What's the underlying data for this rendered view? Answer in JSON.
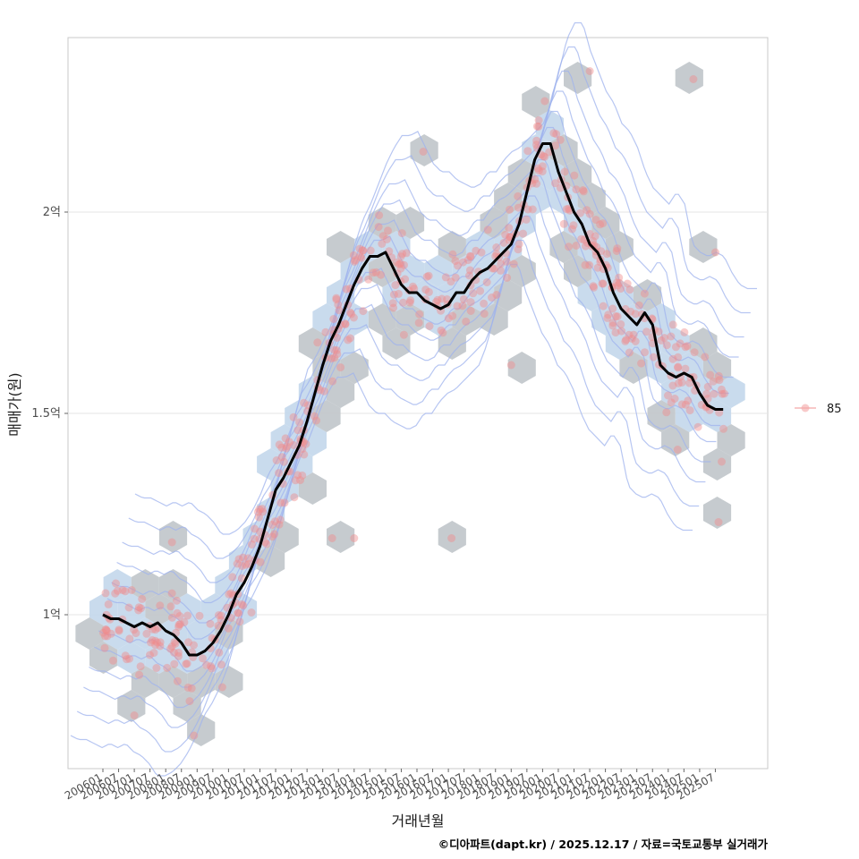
{
  "chart_data": {
    "type": "scatter",
    "title": "",
    "xlabel": "거래년월",
    "ylabel": "매매가(원)",
    "caption": "©디아파트(dapt.kr) / 2025.12.17 / 자료=국토교통부 실거래가",
    "ylim": [
      0.63,
      2.45
    ],
    "y_unit": "억",
    "y_ticks": [
      {
        "value": 1.0,
        "label": "1억"
      },
      {
        "value": 1.5,
        "label": "1.5억"
      },
      {
        "value": 2.0,
        "label": "2억"
      }
    ],
    "x_tick_labels": [
      "200601",
      "200607",
      "200701",
      "200707",
      "200801",
      "200807",
      "200901",
      "200907",
      "201001",
      "201007",
      "201101",
      "201107",
      "201201",
      "201207",
      "201301",
      "201307",
      "201401",
      "201407",
      "201501",
      "201507",
      "201601",
      "201607",
      "201701",
      "201707",
      "201801",
      "201807",
      "201901",
      "201907",
      "202001",
      "202007",
      "202101",
      "202107",
      "202201",
      "202207",
      "202301",
      "202307",
      "202401",
      "202407",
      "202501",
      "202507"
    ],
    "legend": {
      "title": "",
      "entries": [
        "85"
      ],
      "position": "right"
    },
    "layers": [
      "hexbin density",
      "2d density contours",
      "transaction points",
      "moving average line"
    ],
    "series": [
      {
        "name": "moving-average",
        "x": [
          2006.0,
          2006.25,
          2006.5,
          2006.75,
          2007.0,
          2007.25,
          2007.5,
          2007.75,
          2008.0,
          2008.25,
          2008.5,
          2008.75,
          2009.0,
          2009.25,
          2009.5,
          2009.75,
          2010.0,
          2010.25,
          2010.5,
          2010.75,
          2011.0,
          2011.25,
          2011.5,
          2011.75,
          2012.0,
          2012.25,
          2012.5,
          2012.75,
          2013.0,
          2013.25,
          2013.5,
          2013.75,
          2014.0,
          2014.25,
          2014.5,
          2014.75,
          2015.0,
          2015.25,
          2015.5,
          2015.75,
          2016.0,
          2016.25,
          2016.5,
          2016.75,
          2017.0,
          2017.25,
          2017.5,
          2017.75,
          2018.0,
          2018.25,
          2018.5,
          2018.75,
          2019.0,
          2019.25,
          2019.5,
          2019.75,
          2020.0,
          2020.25,
          2020.5,
          2020.75,
          2021.0,
          2021.25,
          2021.5,
          2021.75,
          2022.0,
          2022.25,
          2022.5,
          2022.75,
          2023.0,
          2023.25,
          2023.5,
          2023.75,
          2024.0,
          2024.25,
          2024.5,
          2024.75,
          2025.0,
          2025.25,
          2025.5,
          2025.75
        ],
        "values": [
          1.0,
          0.99,
          0.99,
          0.98,
          0.97,
          0.98,
          0.97,
          0.98,
          0.96,
          0.95,
          0.93,
          0.9,
          0.9,
          0.91,
          0.93,
          0.96,
          1.0,
          1.05,
          1.08,
          1.12,
          1.17,
          1.24,
          1.31,
          1.34,
          1.38,
          1.42,
          1.48,
          1.55,
          1.62,
          1.68,
          1.72,
          1.77,
          1.82,
          1.86,
          1.89,
          1.89,
          1.9,
          1.86,
          1.82,
          1.8,
          1.8,
          1.78,
          1.77,
          1.76,
          1.77,
          1.8,
          1.8,
          1.83,
          1.85,
          1.86,
          1.88,
          1.9,
          1.92,
          1.97,
          2.05,
          2.13,
          2.17,
          2.17,
          2.1,
          2.05,
          2.0,
          1.97,
          1.92,
          1.9,
          1.86,
          1.8,
          1.76,
          1.74,
          1.72,
          1.75,
          1.72,
          1.62,
          1.6,
          1.59,
          1.6,
          1.59,
          1.55,
          1.52,
          1.51,
          1.51
        ]
      }
    ]
  }
}
